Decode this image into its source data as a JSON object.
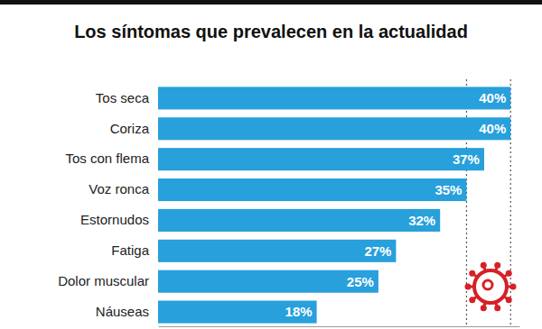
{
  "chart_data": {
    "type": "bar",
    "orientation": "horizontal",
    "title": "Los síntomas que prevalecen en la actualidad",
    "categories": [
      "Tos seca",
      "Coriza",
      "Tos con flema",
      "Voz ronca",
      "Estornudos",
      "Fatiga",
      "Dolor muscular",
      "Náuseas"
    ],
    "values": [
      40,
      40,
      37,
      35,
      32,
      27,
      25,
      18
    ],
    "value_labels": [
      "40%",
      "40%",
      "37%",
      "35%",
      "32%",
      "27%",
      "25%",
      "18%"
    ],
    "data_labels": true,
    "color": "#27a0db",
    "xlim": [
      0,
      41
    ],
    "xticks": [
      35,
      40
    ],
    "grid": true,
    "tick_labels": "y"
  }
}
